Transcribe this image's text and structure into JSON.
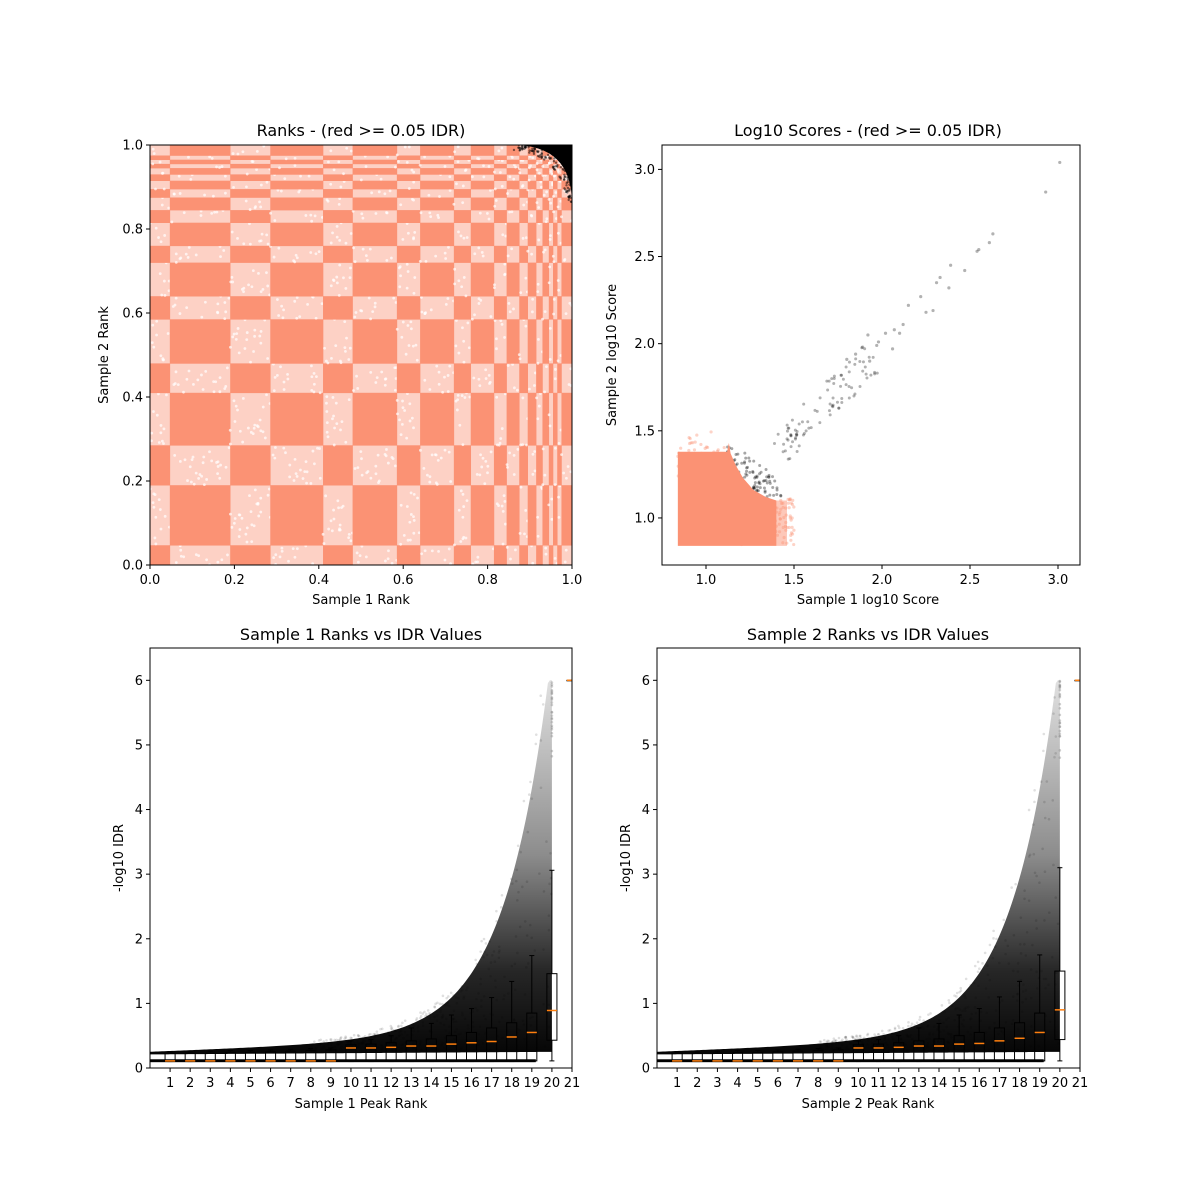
{
  "chart_data": [
    {
      "type": "scatter",
      "title": "Ranks - (red >= 0.05 IDR)",
      "xlabel": "Sample 1 Rank",
      "ylabel": "Sample 2 Rank",
      "xlim": [
        0,
        1
      ],
      "ylim": [
        0,
        1
      ],
      "xticks": [
        "0.0",
        "0.2",
        "0.4",
        "0.6",
        "0.8",
        "1.0"
      ],
      "yticks": [
        "0.0",
        "0.2",
        "0.4",
        "0.6",
        "0.8",
        "1.0"
      ],
      "grid": false,
      "colors": {
        "idr_ge_0.05": "#fb9274",
        "idr_lt_0.05": "#000000"
      },
      "rank_band_edges": [
        0,
        0.047,
        0.19,
        0.285,
        0.41,
        0.48,
        0.585,
        0.64,
        0.72,
        0.76,
        0.815,
        0.845,
        0.875,
        0.895,
        0.915,
        0.93,
        0.945,
        0.955,
        0.965,
        0.975,
        1.0
      ],
      "black_region": {
        "x_min_at_top": 0.86,
        "y_min_at_right": 0.86
      }
    },
    {
      "type": "scatter",
      "title": "Log10 Scores - (red >= 0.05 IDR)",
      "xlabel": "Sample 1 log10 Score",
      "ylabel": "Sample 2 log10 Score",
      "xlim": [
        0.75,
        3.125
      ],
      "ylim": [
        0.73,
        3.14
      ],
      "xticks": [
        "1.0",
        "1.5",
        "2.0",
        "2.5",
        "3.0"
      ],
      "yticks": [
        "1.0",
        "1.5",
        "2.0",
        "2.5",
        "3.0"
      ],
      "grid": false,
      "colors": {
        "idr_ge_0.05": "#fb9274",
        "idr_lt_0.05": "#000000"
      },
      "red_region": {
        "x": [
          0.84,
          1.45
        ],
        "y": [
          0.84,
          1.45
        ]
      },
      "black_outliers": [
        [
          3.01,
          3.04
        ],
        [
          2.93,
          2.87
        ],
        [
          2.63,
          2.63
        ],
        [
          2.61,
          2.58
        ],
        [
          2.55,
          2.54
        ],
        [
          2.54,
          2.53
        ],
        [
          2.39,
          2.45
        ],
        [
          2.47,
          2.42
        ],
        [
          2.33,
          2.38
        ],
        [
          2.31,
          2.35
        ],
        [
          2.38,
          2.32
        ],
        [
          2.22,
          2.27
        ],
        [
          2.29,
          2.19
        ],
        [
          2.25,
          2.18
        ],
        [
          2.15,
          2.22
        ],
        [
          2.12,
          2.11
        ],
        [
          2.07,
          2.08
        ],
        [
          2.1,
          2.06
        ],
        [
          2.02,
          2.06
        ],
        [
          2.06,
          1.97
        ],
        [
          1.98,
          2.01
        ],
        [
          1.97,
          1.99
        ],
        [
          1.92,
          2.05
        ],
        [
          1.89,
          1.98
        ],
        [
          1.93,
          1.9
        ],
        [
          1.85,
          1.94
        ],
        [
          1.8,
          1.91
        ]
      ]
    },
    {
      "type": "boxplot",
      "title": "Sample 1 Ranks vs IDR Values",
      "xlabel": "Sample 1 Peak Rank",
      "ylabel": "-log10 IDR",
      "xlim": [
        0,
        21
      ],
      "ylim": [
        0,
        6.5
      ],
      "xticks": [
        "1",
        "2",
        "3",
        "4",
        "5",
        "6",
        "7",
        "8",
        "9",
        "10",
        "11",
        "12",
        "13",
        "14",
        "15",
        "16",
        "17",
        "18",
        "19",
        "20",
        "21"
      ],
      "yticks": [
        "0",
        "1",
        "2",
        "3",
        "4",
        "5",
        "6"
      ],
      "grid": false,
      "colors": {
        "points": "#000000",
        "median": "#ff7f0e"
      },
      "boxes": {
        "positions": [
          1,
          2,
          3,
          4,
          5,
          6,
          7,
          8,
          9,
          10,
          11,
          12,
          13,
          14,
          15,
          16,
          17,
          18,
          19,
          20,
          21
        ],
        "whislo": [
          0.1,
          0.1,
          0.1,
          0.1,
          0.1,
          0.1,
          0.1,
          0.1,
          0.1,
          0.1,
          0.1,
          0.1,
          0.1,
          0.1,
          0.1,
          0.1,
          0.1,
          0.1,
          0.1,
          0.11,
          6
        ],
        "q1": [
          0.11,
          0.11,
          0.11,
          0.11,
          0.11,
          0.11,
          0.11,
          0.11,
          0.11,
          0.11,
          0.11,
          0.11,
          0.11,
          0.11,
          0.11,
          0.11,
          0.11,
          0.11,
          0.11,
          0.43,
          6
        ],
        "median": [
          0.11,
          0.11,
          0.11,
          0.11,
          0.11,
          0.11,
          0.11,
          0.11,
          0.11,
          0.31,
          0.31,
          0.32,
          0.34,
          0.34,
          0.37,
          0.39,
          0.41,
          0.48,
          0.55,
          0.89,
          6
        ],
        "q3": [
          0.23,
          0.23,
          0.23,
          0.24,
          0.24,
          0.25,
          0.26,
          0.27,
          0.28,
          0.36,
          0.37,
          0.39,
          0.42,
          0.45,
          0.5,
          0.55,
          0.62,
          0.7,
          0.85,
          1.46,
          6
        ],
        "whishi": [
          0.25,
          0.25,
          0.26,
          0.27,
          0.27,
          0.28,
          0.29,
          0.3,
          0.31,
          0.42,
          0.44,
          0.5,
          0.62,
          0.69,
          0.82,
          0.92,
          1.09,
          1.34,
          1.74,
          3.06,
          6
        ]
      }
    },
    {
      "type": "boxplot",
      "title": "Sample 2 Ranks vs IDR Values",
      "xlabel": "Sample 2 Peak Rank",
      "ylabel": "-log10 IDR",
      "xlim": [
        0,
        21
      ],
      "ylim": [
        0,
        6.5
      ],
      "xticks": [
        "1",
        "2",
        "3",
        "4",
        "5",
        "6",
        "7",
        "8",
        "9",
        "10",
        "11",
        "12",
        "13",
        "14",
        "15",
        "16",
        "17",
        "18",
        "19",
        "20",
        "21"
      ],
      "yticks": [
        "0",
        "1",
        "2",
        "3",
        "4",
        "5",
        "6"
      ],
      "grid": false,
      "colors": {
        "points": "#000000",
        "median": "#ff7f0e"
      },
      "boxes": {
        "positions": [
          1,
          2,
          3,
          4,
          5,
          6,
          7,
          8,
          9,
          10,
          11,
          12,
          13,
          14,
          15,
          16,
          17,
          18,
          19,
          20,
          21
        ],
        "whislo": [
          0.1,
          0.1,
          0.1,
          0.1,
          0.1,
          0.1,
          0.1,
          0.1,
          0.1,
          0.1,
          0.1,
          0.1,
          0.1,
          0.1,
          0.1,
          0.1,
          0.1,
          0.1,
          0.1,
          0.11,
          6
        ],
        "q1": [
          0.11,
          0.11,
          0.11,
          0.11,
          0.11,
          0.11,
          0.11,
          0.11,
          0.11,
          0.11,
          0.11,
          0.11,
          0.11,
          0.11,
          0.11,
          0.11,
          0.11,
          0.11,
          0.11,
          0.44,
          6
        ],
        "median": [
          0.11,
          0.11,
          0.11,
          0.11,
          0.11,
          0.11,
          0.11,
          0.11,
          0.11,
          0.31,
          0.31,
          0.32,
          0.34,
          0.34,
          0.37,
          0.38,
          0.42,
          0.46,
          0.55,
          0.9,
          6
        ],
        "q3": [
          0.23,
          0.23,
          0.23,
          0.24,
          0.24,
          0.25,
          0.26,
          0.27,
          0.28,
          0.36,
          0.37,
          0.39,
          0.42,
          0.45,
          0.5,
          0.55,
          0.62,
          0.7,
          0.85,
          1.5,
          6
        ],
        "whishi": [
          0.25,
          0.25,
          0.26,
          0.27,
          0.27,
          0.28,
          0.29,
          0.3,
          0.31,
          0.42,
          0.44,
          0.5,
          0.62,
          0.69,
          0.82,
          0.92,
          1.1,
          1.34,
          1.75,
          3.1,
          6
        ]
      }
    }
  ]
}
